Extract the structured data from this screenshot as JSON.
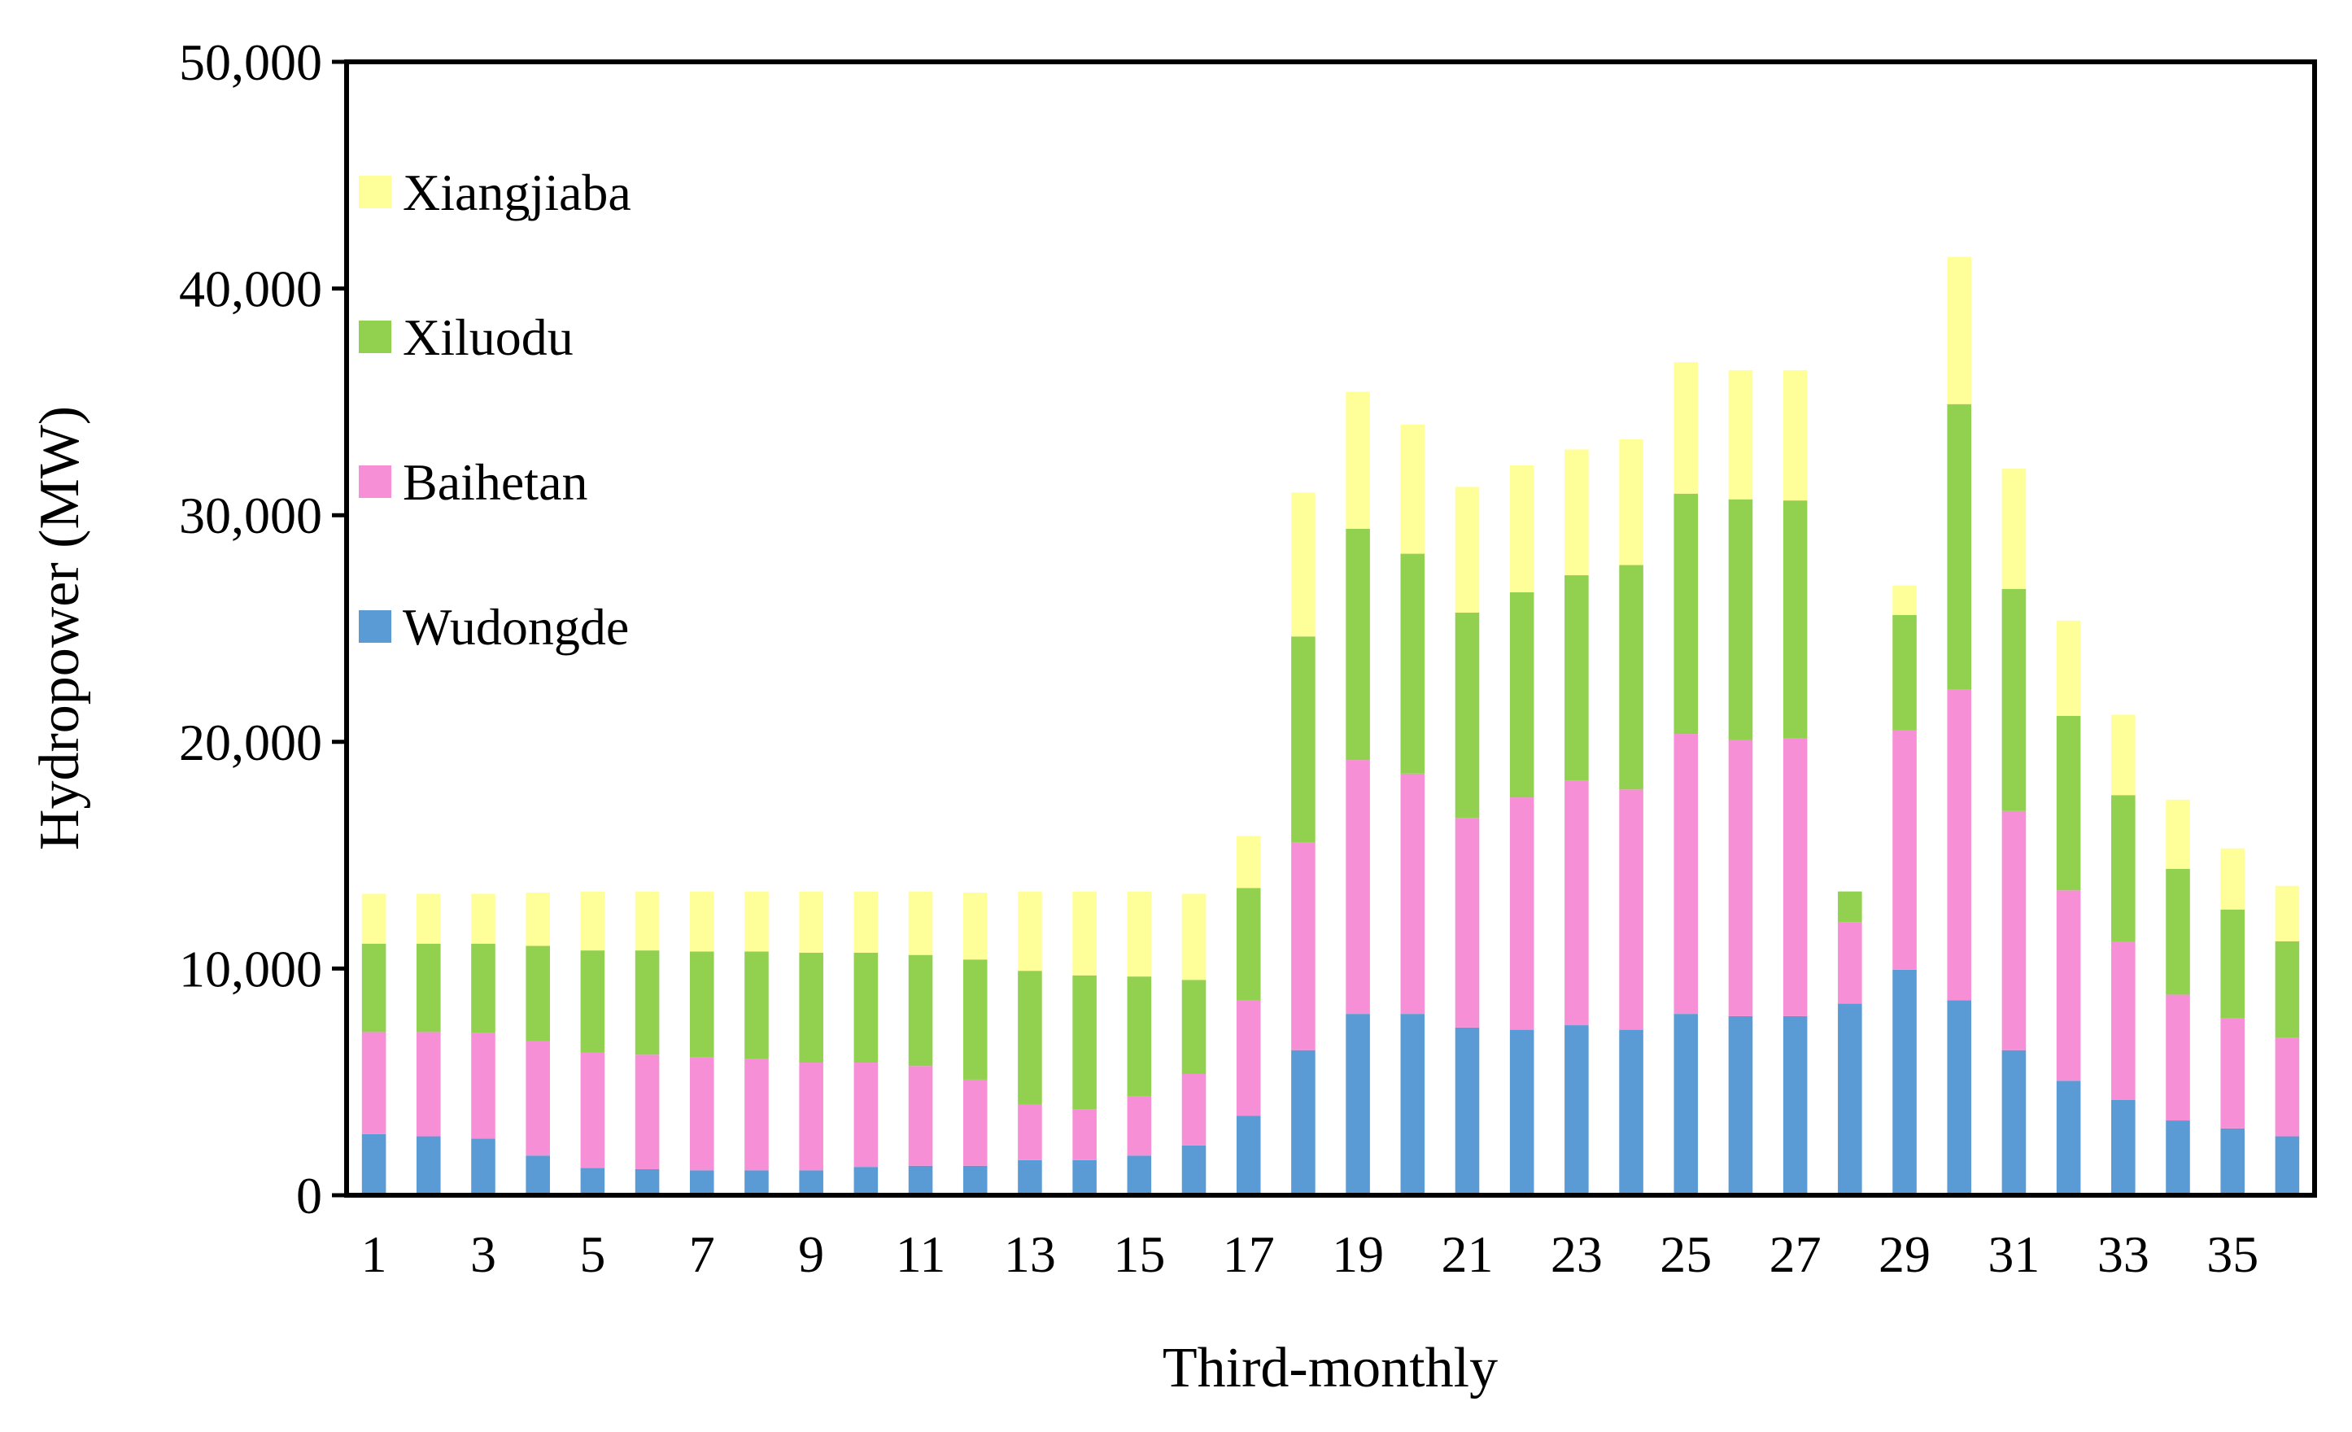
{
  "chart_data": {
    "type": "bar",
    "stacked": true,
    "title": "",
    "xlabel": "Third-monthly",
    "ylabel": "Hydropower (MW)",
    "ylim": [
      0,
      50000
    ],
    "yticks": [
      0,
      10000,
      20000,
      30000,
      40000,
      50000
    ],
    "ytick_labels": [
      "0",
      "10,000",
      "20,000",
      "30,000",
      "40,000",
      "50,000"
    ],
    "categories": [
      "1",
      "2",
      "3",
      "4",
      "5",
      "6",
      "7",
      "8",
      "9",
      "10",
      "11",
      "12",
      "13",
      "14",
      "15",
      "16",
      "17",
      "18",
      "19",
      "20",
      "21",
      "22",
      "23",
      "24",
      "25",
      "26",
      "27",
      "28",
      "29",
      "30",
      "31",
      "32",
      "33",
      "34",
      "35",
      "36"
    ],
    "xtick_labels": [
      "1",
      "",
      "3",
      "",
      "5",
      "",
      "7",
      "",
      "9",
      "",
      "11",
      "",
      "13",
      "",
      "15",
      "",
      "17",
      "",
      "19",
      "",
      "21",
      "",
      "23",
      "",
      "25",
      "",
      "27",
      "",
      "29",
      "",
      "31",
      "",
      "33",
      "",
      "35",
      ""
    ],
    "legend_position": "top-left",
    "series": [
      {
        "name": "Wudongde",
        "color": "#5B9BD5",
        "values": [
          2700,
          2600,
          2500,
          1750,
          1200,
          1150,
          1100,
          1100,
          1100,
          1250,
          1300,
          1300,
          1550,
          1550,
          1750,
          2200,
          3500,
          6400,
          8000,
          8000,
          7400,
          7300,
          7500,
          7300,
          8000,
          7900,
          7900,
          8450,
          9950,
          8600,
          6400,
          5050,
          4200,
          3300,
          2950,
          2600
        ]
      },
      {
        "name": "Baihetan",
        "color": "#F78FD6",
        "values": [
          4500,
          4600,
          4650,
          5050,
          5100,
          5050,
          5000,
          4900,
          4750,
          4600,
          4400,
          3800,
          2450,
          2250,
          2600,
          3150,
          5100,
          9150,
          11200,
          10600,
          9250,
          10250,
          10800,
          10600,
          12350,
          12200,
          12250,
          3600,
          10550,
          13700,
          10550,
          8400,
          7000,
          5550,
          4850,
          4350
        ]
      },
      {
        "name": "Xiluodu",
        "color": "#92D050",
        "values": [
          3900,
          3900,
          3950,
          4200,
          4500,
          4600,
          4650,
          4750,
          4850,
          4850,
          4900,
          5300,
          5900,
          5900,
          5300,
          4150,
          4950,
          9100,
          10200,
          9700,
          9050,
          9050,
          9050,
          9900,
          10600,
          10600,
          10500,
          1350,
          5100,
          12600,
          9800,
          7700,
          6450,
          5550,
          4800,
          4250
        ]
      },
      {
        "name": "Xiangjiaba",
        "color": "#FFFF99",
        "values": [
          2200,
          2200,
          2200,
          2350,
          2600,
          2600,
          2650,
          2650,
          2700,
          2700,
          2800,
          2950,
          3500,
          3700,
          3750,
          3800,
          2300,
          6350,
          6050,
          5700,
          5550,
          5600,
          5550,
          5550,
          5800,
          5700,
          5750,
          0,
          1300,
          6500,
          5300,
          4200,
          3550,
          3050,
          2700,
          2450
        ]
      }
    ]
  }
}
